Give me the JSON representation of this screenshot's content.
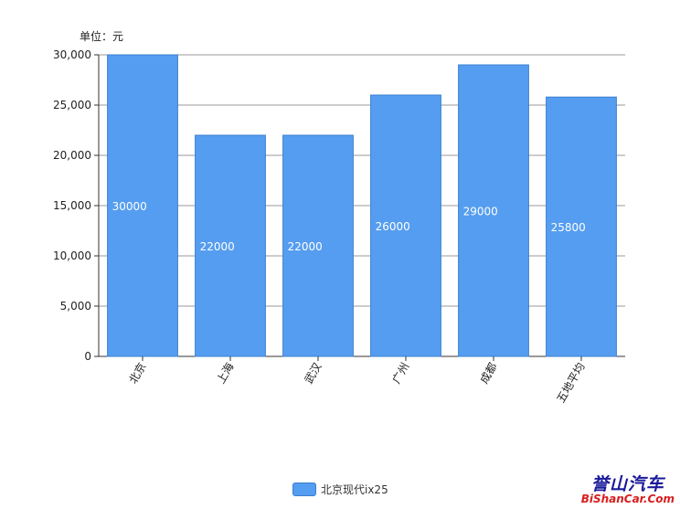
{
  "unit_label": "单位：元",
  "chart_data": {
    "type": "bar",
    "categories": [
      "北京",
      "上海",
      "武汉",
      "广州",
      "成都",
      "五地平均"
    ],
    "series": [
      {
        "name": "北京现代ix25",
        "values": [
          30000,
          22000,
          22000,
          26000,
          29000,
          25800
        ]
      }
    ],
    "data_labels": [
      "30000",
      "22000",
      "22000",
      "26000",
      "29000",
      "25800"
    ],
    "ylim": [
      0,
      30000
    ],
    "yticks": [
      0,
      5000,
      10000,
      15000,
      20000,
      25000,
      30000
    ],
    "ytick_labels": [
      "0",
      "5,000",
      "10,000",
      "15,000",
      "20,000",
      "25,000",
      "30,000"
    ],
    "grid": true,
    "legend": "bottom-center",
    "bar_color": "#559df0",
    "bar_stroke": "#3a7fd0"
  },
  "watermark": {
    "text": "誉山汽车",
    "site": "BiShanCar.Com"
  }
}
